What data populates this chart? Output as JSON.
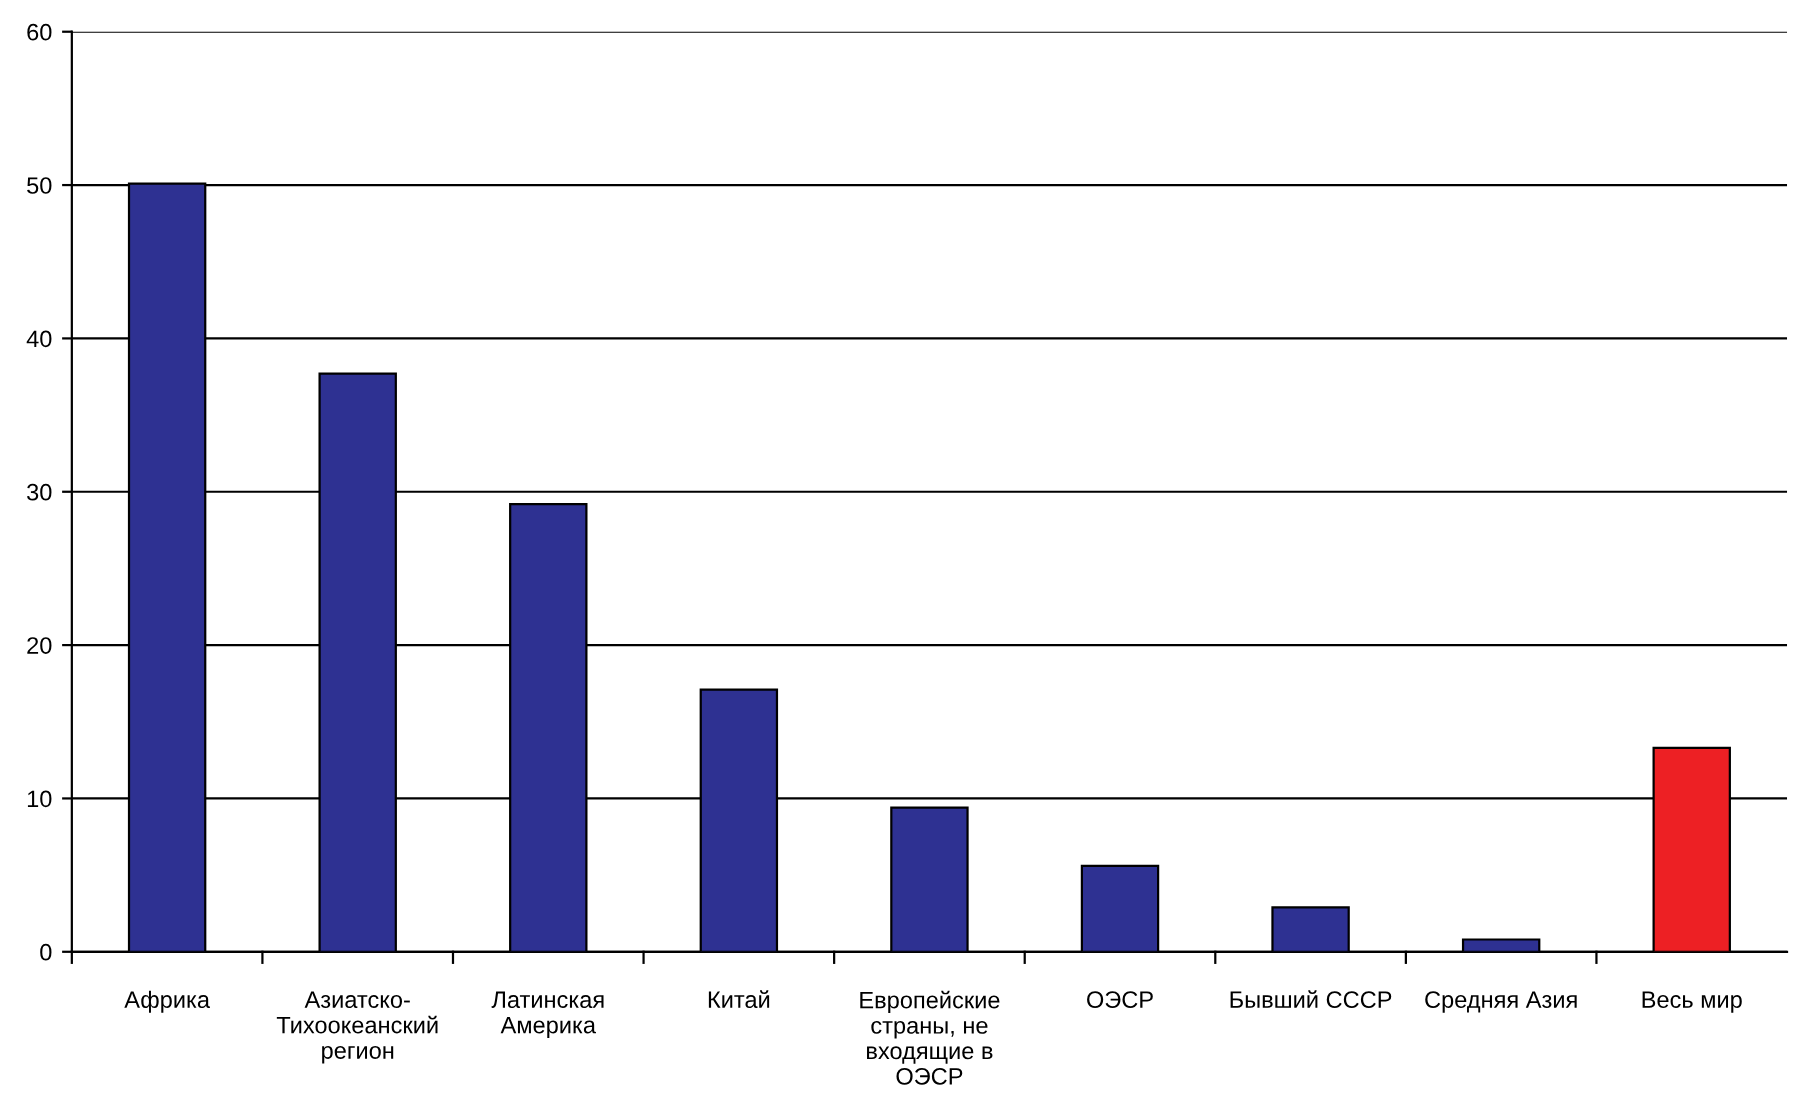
{
  "chart_data": {
    "type": "bar",
    "categories": [
      "Африка",
      "Азиатско-\nТихоокеанский\nрегион",
      "Латинская\nАмерика",
      "Китай",
      "Европейские\nстраны, не\nвходящие в\nОЭСР",
      "ОЭСР",
      "Бывший СССР",
      "Средняя Азия",
      "Весь мир"
    ],
    "values": [
      50.1,
      37.7,
      29.2,
      17.1,
      9.4,
      5.6,
      2.9,
      0.8,
      13.3
    ],
    "colors": [
      "#2e3192",
      "#2e3192",
      "#2e3192",
      "#2e3192",
      "#2e3192",
      "#2e3192",
      "#2e3192",
      "#2e3192",
      "#ed2024"
    ],
    "ylim": [
      0,
      60
    ],
    "yticks": [
      0,
      10,
      20,
      30,
      40,
      50,
      60
    ],
    "grid": "y",
    "legend": false
  }
}
